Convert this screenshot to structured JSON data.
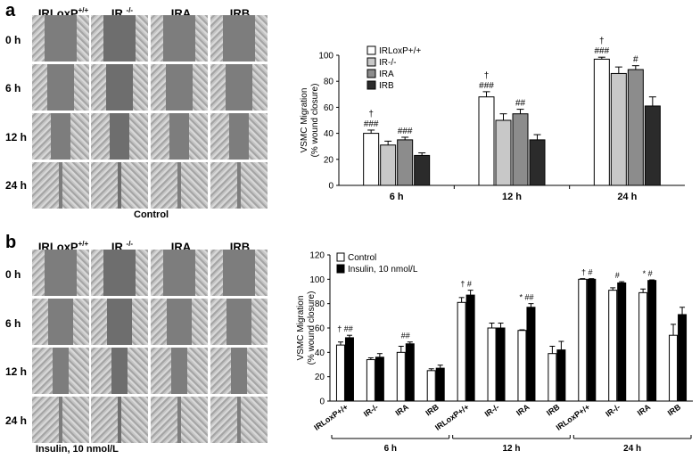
{
  "panel_a": {
    "letter": "a",
    "columns": [
      {
        "main": "IRLoxP",
        "sup": "+/+"
      },
      {
        "main": "IR ",
        "sup": "-/-"
      },
      {
        "main": "IRA",
        "sup": ""
      },
      {
        "main": "IRB",
        "sup": ""
      }
    ],
    "rows": [
      "0 h",
      "6 h",
      "12 h",
      "24 h"
    ],
    "caption": "Control"
  },
  "panel_b": {
    "letter": "b",
    "columns": [
      {
        "main": "IRLoxP",
        "sup": "+/+"
      },
      {
        "main": "IR ",
        "sup": "-/-"
      },
      {
        "main": "IRA",
        "sup": ""
      },
      {
        "main": "IRB",
        "sup": ""
      }
    ],
    "rows": [
      "0 h",
      "6 h",
      "12 h",
      "24 h"
    ],
    "caption": "Insulin, 10 nmol/L"
  },
  "colors": {
    "white_bar": "#ffffff",
    "light_gray": "#c8c8c8",
    "mid_gray": "#8c8c8c",
    "dark": "#2b2b2b",
    "black": "#000000"
  },
  "chart_data": [
    {
      "type": "bar",
      "ylabel_lines": [
        "VSMC Migration",
        "(% wound closure)"
      ],
      "ylim": [
        0,
        100
      ],
      "yticks": [
        "0",
        "20",
        "40",
        "60",
        "80",
        "100"
      ],
      "categories": [
        "6 h",
        "12 h",
        "24 h"
      ],
      "legend": [
        "IRLoxP+/+",
        "IR-/-",
        "IRA",
        "IRB"
      ],
      "series": [
        {
          "name": "IRLoxP+/+",
          "values": [
            40,
            68,
            97
          ],
          "errors": [
            2.5,
            4,
            1.5
          ]
        },
        {
          "name": "IR-/-",
          "values": [
            31,
            50,
            86
          ],
          "errors": [
            3,
            5,
            5
          ]
        },
        {
          "name": "IRA",
          "values": [
            35,
            55,
            89
          ],
          "errors": [
            2,
            3.5,
            3
          ]
        },
        {
          "name": "IRB",
          "values": [
            23,
            35,
            61
          ],
          "errors": [
            2,
            4,
            7
          ]
        }
      ],
      "annotations": [
        {
          "group": 0,
          "series": 0,
          "lines": [
            "†",
            "###"
          ]
        },
        {
          "group": 0,
          "series": 2,
          "lines": [
            "###"
          ]
        },
        {
          "group": 1,
          "series": 0,
          "lines": [
            "†",
            "###"
          ]
        },
        {
          "group": 1,
          "series": 2,
          "lines": [
            "##"
          ]
        },
        {
          "group": 2,
          "series": 0,
          "lines": [
            "†",
            "###"
          ]
        },
        {
          "group": 2,
          "series": 2,
          "lines": [
            "#"
          ]
        }
      ]
    },
    {
      "type": "bar",
      "ylabel_lines": [
        "VSMC Migration",
        "(% wound closure)"
      ],
      "ylim": [
        0,
        120
      ],
      "yticks": [
        "0",
        "20",
        "40",
        "60",
        "80",
        "100",
        "120"
      ],
      "categories": [
        "IRLoxP+/+",
        "IR-/-",
        "IRA",
        "IRB",
        "IRLoxP+/+",
        "IR-/-",
        "IRA",
        "IRB",
        "IRLoxP+/+",
        "IR-/-",
        "IRA",
        "IRB"
      ],
      "groups": [
        "6 h",
        "12 h",
        "24 h"
      ],
      "legend": [
        "Control",
        "Insulin, 10 nmol/L"
      ],
      "series": [
        {
          "name": "Control",
          "values": [
            46,
            34,
            40,
            25,
            81,
            60,
            58,
            39,
            100,
            91,
            89,
            54
          ],
          "errors": [
            2.5,
            1.5,
            5,
            1.5,
            4,
            4,
            0.5,
            6,
            0.5,
            2,
            3,
            9
          ]
        },
        {
          "name": "Insulin, 10 nmol/L",
          "values": [
            52,
            36,
            47,
            27,
            87,
            60,
            77,
            42,
            100,
            97,
            99,
            71
          ],
          "errors": [
            2,
            3,
            1.5,
            2.5,
            4,
            4,
            3,
            7,
            0.5,
            1,
            0.5,
            6
          ]
        }
      ],
      "annotations": [
        {
          "index": 0,
          "text": "† ##"
        },
        {
          "index": 2,
          "text": "##"
        },
        {
          "index": 4,
          "text": "† #"
        },
        {
          "index": 6,
          "text": "* ##"
        },
        {
          "index": 8,
          "text": "† #"
        },
        {
          "index": 9,
          "text": "#"
        },
        {
          "index": 10,
          "text": "* #"
        }
      ]
    }
  ]
}
